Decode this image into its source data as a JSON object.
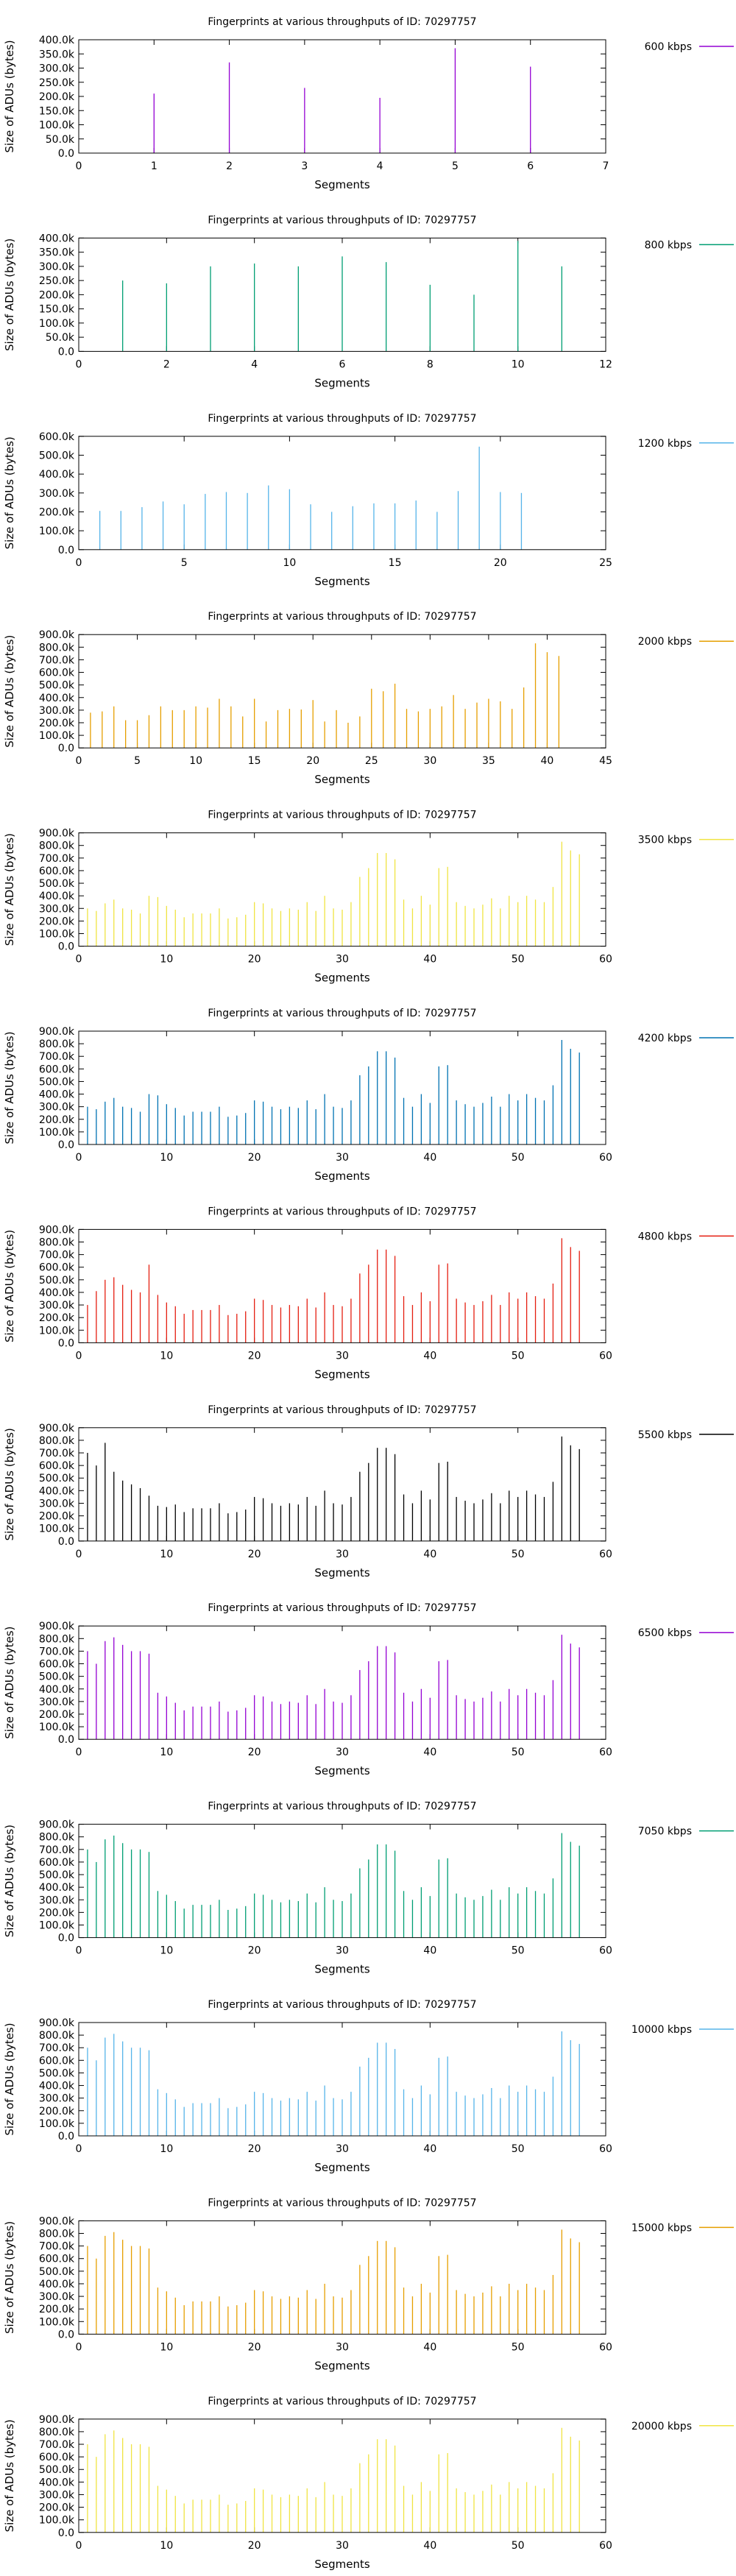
{
  "chart_data": [
    {
      "type": "bar",
      "title": "Fingerprints at various throughputs of ID: 70297757",
      "xlabel": "Segments",
      "ylabel": "Size of ADUs (bytes)",
      "legend": "600 kbps",
      "color": "#9400d3",
      "xlim": [
        0,
        7
      ],
      "xticks": [
        0,
        1,
        2,
        3,
        4,
        5,
        6,
        7
      ],
      "ylim": [
        0,
        400000
      ],
      "yticks": [
        "0.0",
        "50.0k",
        "100.0k",
        "150.0k",
        "200.0k",
        "250.0k",
        "300.0k",
        "350.0k",
        "400.0k"
      ],
      "values": [
        210000,
        320000,
        230000,
        195000,
        370000,
        305000
      ]
    },
    {
      "type": "bar",
      "title": "Fingerprints at various throughputs of ID: 70297757",
      "xlabel": "Segments",
      "ylabel": "Size of ADUs (bytes)",
      "legend": "800 kbps",
      "color": "#009e73",
      "xlim": [
        0,
        12
      ],
      "xticks": [
        0,
        2,
        4,
        6,
        8,
        10,
        12
      ],
      "ylim": [
        0,
        400000
      ],
      "yticks": [
        "0.0",
        "50.0k",
        "100.0k",
        "150.0k",
        "200.0k",
        "250.0k",
        "300.0k",
        "350.0k",
        "400.0k"
      ],
      "values": [
        250000,
        240000,
        300000,
        310000,
        300000,
        335000,
        315000,
        235000,
        200000,
        390000,
        300000
      ]
    },
    {
      "type": "bar",
      "title": "Fingerprints at various throughputs of ID: 70297757",
      "xlabel": "Segments",
      "ylabel": "Size of ADUs (bytes)",
      "legend": "1200 kbps",
      "color": "#56b4e9",
      "xlim": [
        0,
        25
      ],
      "xticks": [
        0,
        5,
        10,
        15,
        20,
        25
      ],
      "ylim": [
        0,
        600000
      ],
      "yticks": [
        "0.0",
        "100.0k",
        "200.0k",
        "300.0k",
        "400.0k",
        "500.0k",
        "600.0k"
      ],
      "values": [
        205000,
        205000,
        225000,
        255000,
        240000,
        295000,
        305000,
        300000,
        340000,
        320000,
        240000,
        200000,
        230000,
        245000,
        245000,
        260000,
        200000,
        310000,
        545000,
        305000,
        300000
      ]
    },
    {
      "type": "bar",
      "title": "Fingerprints at various throughputs of ID: 70297757",
      "xlabel": "Segments",
      "ylabel": "Size of ADUs (bytes)",
      "legend": "2000 kbps",
      "color": "#e69f00",
      "xlim": [
        0,
        45
      ],
      "xticks": [
        0,
        5,
        10,
        15,
        20,
        25,
        30,
        35,
        40,
        45
      ],
      "ylim": [
        0,
        900000
      ],
      "yticks": [
        "0.0",
        "100.0k",
        "200.0k",
        "300.0k",
        "400.0k",
        "500.0k",
        "600.0k",
        "700.0k",
        "800.0k",
        "900.0k"
      ],
      "values": [
        280000,
        290000,
        330000,
        220000,
        220000,
        260000,
        330000,
        300000,
        300000,
        330000,
        320000,
        390000,
        330000,
        250000,
        390000,
        210000,
        300000,
        310000,
        305000,
        380000,
        210000,
        300000,
        200000,
        250000,
        470000,
        450000,
        510000,
        310000,
        290000,
        310000,
        330000,
        420000,
        310000,
        360000,
        390000,
        370000,
        310000,
        480000,
        830000,
        760000,
        730000
      ]
    },
    {
      "type": "bar",
      "title": "Fingerprints at various throughputs of ID: 70297757",
      "xlabel": "Segments",
      "ylabel": "Size of ADUs (bytes)",
      "legend": "3500 kbps",
      "color": "#f0e442",
      "xlim": [
        0,
        60
      ],
      "xticks": [
        0,
        10,
        20,
        30,
        40,
        50,
        60
      ],
      "ylim": [
        0,
        900000
      ],
      "yticks": [
        "0.0",
        "100.0k",
        "200.0k",
        "300.0k",
        "400.0k",
        "500.0k",
        "600.0k",
        "700.0k",
        "800.0k",
        "900.0k"
      ],
      "values": [
        300000,
        280000,
        340000,
        370000,
        300000,
        290000,
        260000,
        400000,
        390000,
        320000,
        290000,
        230000,
        260000,
        260000,
        260000,
        300000,
        220000,
        230000,
        250000,
        350000,
        340000,
        300000,
        280000,
        300000,
        290000,
        350000,
        280000,
        400000,
        300000,
        290000,
        350000,
        550000,
        620000,
        740000,
        740000,
        690000,
        370000,
        300000,
        400000,
        330000,
        620000,
        630000,
        350000,
        320000,
        300000,
        330000,
        380000,
        300000,
        400000,
        350000,
        400000,
        370000,
        350000,
        470000,
        830000,
        760000,
        730000
      ]
    },
    {
      "type": "bar",
      "title": "Fingerprints at various throughputs of ID: 70297757",
      "xlabel": "Segments",
      "ylabel": "Size of ADUs (bytes)",
      "legend": "4200 kbps",
      "color": "#0072b2",
      "xlim": [
        0,
        60
      ],
      "xticks": [
        0,
        10,
        20,
        30,
        40,
        50,
        60
      ],
      "ylim": [
        0,
        900000
      ],
      "yticks": [
        "0.0",
        "100.0k",
        "200.0k",
        "300.0k",
        "400.0k",
        "500.0k",
        "600.0k",
        "700.0k",
        "800.0k",
        "900.0k"
      ],
      "values": [
        300000,
        280000,
        340000,
        370000,
        300000,
        290000,
        260000,
        400000,
        390000,
        320000,
        290000,
        230000,
        260000,
        260000,
        260000,
        300000,
        220000,
        230000,
        250000,
        350000,
        340000,
        300000,
        280000,
        300000,
        290000,
        350000,
        280000,
        400000,
        300000,
        290000,
        350000,
        550000,
        620000,
        740000,
        740000,
        690000,
        370000,
        300000,
        400000,
        330000,
        620000,
        630000,
        350000,
        320000,
        300000,
        330000,
        380000,
        300000,
        400000,
        350000,
        400000,
        370000,
        350000,
        470000,
        830000,
        760000,
        730000
      ]
    },
    {
      "type": "bar",
      "title": "Fingerprints at various throughputs of ID: 70297757",
      "xlabel": "Segments",
      "ylabel": "Size of ADUs (bytes)",
      "legend": "4800 kbps",
      "color": "#e51e10",
      "xlim": [
        0,
        60
      ],
      "xticks": [
        0,
        10,
        20,
        30,
        40,
        50,
        60
      ],
      "ylim": [
        0,
        900000
      ],
      "yticks": [
        "0.0",
        "100.0k",
        "200.0k",
        "300.0k",
        "400.0k",
        "500.0k",
        "600.0k",
        "700.0k",
        "800.0k",
        "900.0k"
      ],
      "values": [
        300000,
        410000,
        500000,
        520000,
        460000,
        420000,
        400000,
        620000,
        380000,
        320000,
        290000,
        230000,
        260000,
        260000,
        260000,
        300000,
        220000,
        230000,
        250000,
        350000,
        340000,
        300000,
        280000,
        300000,
        290000,
        350000,
        280000,
        400000,
        300000,
        290000,
        350000,
        550000,
        620000,
        740000,
        740000,
        690000,
        370000,
        300000,
        400000,
        330000,
        620000,
        630000,
        350000,
        320000,
        300000,
        330000,
        380000,
        300000,
        400000,
        350000,
        400000,
        370000,
        350000,
        470000,
        830000,
        760000,
        730000
      ]
    },
    {
      "type": "bar",
      "title": "Fingerprints at various throughputs of ID: 70297757",
      "xlabel": "Segments",
      "ylabel": "Size of ADUs (bytes)",
      "legend": "5500 kbps",
      "color": "#000000",
      "xlim": [
        0,
        60
      ],
      "xticks": [
        0,
        10,
        20,
        30,
        40,
        50,
        60
      ],
      "ylim": [
        0,
        900000
      ],
      "yticks": [
        "0.0",
        "100.0k",
        "200.0k",
        "300.0k",
        "400.0k",
        "500.0k",
        "600.0k",
        "700.0k",
        "800.0k",
        "900.0k"
      ],
      "values": [
        700000,
        600000,
        780000,
        550000,
        480000,
        450000,
        420000,
        360000,
        280000,
        270000,
        290000,
        230000,
        260000,
        260000,
        260000,
        300000,
        220000,
        230000,
        250000,
        350000,
        340000,
        300000,
        280000,
        300000,
        290000,
        350000,
        280000,
        400000,
        300000,
        290000,
        350000,
        550000,
        620000,
        740000,
        740000,
        690000,
        370000,
        300000,
        400000,
        330000,
        620000,
        630000,
        350000,
        320000,
        300000,
        330000,
        380000,
        300000,
        400000,
        350000,
        400000,
        370000,
        350000,
        470000,
        830000,
        760000,
        730000
      ]
    },
    {
      "type": "bar",
      "title": "Fingerprints at various throughputs of ID: 70297757",
      "xlabel": "Segments",
      "ylabel": "Size of ADUs (bytes)",
      "legend": "6500 kbps",
      "color": "#9400d3",
      "xlim": [
        0,
        60
      ],
      "xticks": [
        0,
        10,
        20,
        30,
        40,
        50,
        60
      ],
      "ylim": [
        0,
        900000
      ],
      "yticks": [
        "0.0",
        "100.0k",
        "200.0k",
        "300.0k",
        "400.0k",
        "500.0k",
        "600.0k",
        "700.0k",
        "800.0k",
        "900.0k"
      ],
      "values": [
        700000,
        600000,
        780000,
        810000,
        750000,
        700000,
        700000,
        680000,
        370000,
        340000,
        290000,
        230000,
        260000,
        260000,
        260000,
        300000,
        220000,
        230000,
        250000,
        350000,
        340000,
        300000,
        280000,
        300000,
        290000,
        350000,
        280000,
        400000,
        300000,
        290000,
        350000,
        550000,
        620000,
        740000,
        740000,
        690000,
        370000,
        300000,
        400000,
        330000,
        620000,
        630000,
        350000,
        320000,
        300000,
        330000,
        380000,
        300000,
        400000,
        350000,
        400000,
        370000,
        350000,
        470000,
        830000,
        760000,
        730000
      ]
    },
    {
      "type": "bar",
      "title": "Fingerprints at various throughputs of ID: 70297757",
      "xlabel": "Segments",
      "ylabel": "Size of ADUs (bytes)",
      "legend": "7050 kbps",
      "color": "#009e73",
      "xlim": [
        0,
        60
      ],
      "xticks": [
        0,
        10,
        20,
        30,
        40,
        50,
        60
      ],
      "ylim": [
        0,
        900000
      ],
      "yticks": [
        "0.0",
        "100.0k",
        "200.0k",
        "300.0k",
        "400.0k",
        "500.0k",
        "600.0k",
        "700.0k",
        "800.0k",
        "900.0k"
      ],
      "values": [
        700000,
        600000,
        780000,
        810000,
        750000,
        700000,
        700000,
        680000,
        370000,
        340000,
        290000,
        230000,
        260000,
        260000,
        260000,
        300000,
        220000,
        230000,
        250000,
        350000,
        340000,
        300000,
        280000,
        300000,
        290000,
        350000,
        280000,
        400000,
        300000,
        290000,
        350000,
        550000,
        620000,
        740000,
        740000,
        690000,
        370000,
        300000,
        400000,
        330000,
        620000,
        630000,
        350000,
        320000,
        300000,
        330000,
        380000,
        300000,
        400000,
        350000,
        400000,
        370000,
        350000,
        470000,
        830000,
        760000,
        730000
      ]
    },
    {
      "type": "bar",
      "title": "Fingerprints at various throughputs of ID: 70297757",
      "xlabel": "Segments",
      "ylabel": "Size of ADUs (bytes)",
      "legend": "10000 kbps",
      "color": "#56b4e9",
      "xlim": [
        0,
        60
      ],
      "xticks": [
        0,
        10,
        20,
        30,
        40,
        50,
        60
      ],
      "ylim": [
        0,
        900000
      ],
      "yticks": [
        "0.0",
        "100.0k",
        "200.0k",
        "300.0k",
        "400.0k",
        "500.0k",
        "600.0k",
        "700.0k",
        "800.0k",
        "900.0k"
      ],
      "values": [
        700000,
        600000,
        780000,
        810000,
        750000,
        700000,
        700000,
        680000,
        370000,
        340000,
        290000,
        230000,
        260000,
        260000,
        260000,
        300000,
        220000,
        230000,
        250000,
        350000,
        340000,
        300000,
        280000,
        300000,
        290000,
        350000,
        280000,
        400000,
        300000,
        290000,
        350000,
        550000,
        620000,
        740000,
        740000,
        690000,
        370000,
        300000,
        400000,
        330000,
        620000,
        630000,
        350000,
        320000,
        300000,
        330000,
        380000,
        300000,
        400000,
        350000,
        400000,
        370000,
        350000,
        470000,
        830000,
        760000,
        730000
      ]
    },
    {
      "type": "bar",
      "title": "Fingerprints at various throughputs of ID: 70297757",
      "xlabel": "Segments",
      "ylabel": "Size of ADUs (bytes)",
      "legend": "15000 kbps",
      "color": "#e69f00",
      "xlim": [
        0,
        60
      ],
      "xticks": [
        0,
        10,
        20,
        30,
        40,
        50,
        60
      ],
      "ylim": [
        0,
        900000
      ],
      "yticks": [
        "0.0",
        "100.0k",
        "200.0k",
        "300.0k",
        "400.0k",
        "500.0k",
        "600.0k",
        "700.0k",
        "800.0k",
        "900.0k"
      ],
      "values": [
        700000,
        600000,
        780000,
        810000,
        750000,
        700000,
        700000,
        680000,
        370000,
        340000,
        290000,
        230000,
        260000,
        260000,
        260000,
        300000,
        220000,
        230000,
        250000,
        350000,
        340000,
        300000,
        280000,
        300000,
        290000,
        350000,
        280000,
        400000,
        300000,
        290000,
        350000,
        550000,
        620000,
        740000,
        740000,
        690000,
        370000,
        300000,
        400000,
        330000,
        620000,
        630000,
        350000,
        320000,
        300000,
        330000,
        380000,
        300000,
        400000,
        350000,
        400000,
        370000,
        350000,
        470000,
        830000,
        760000,
        730000
      ]
    },
    {
      "type": "bar",
      "title": "Fingerprints at various throughputs of ID: 70297757",
      "xlabel": "Segments",
      "ylabel": "Size of ADUs (bytes)",
      "legend": "20000 kbps",
      "color": "#f0e442",
      "xlim": [
        0,
        60
      ],
      "xticks": [
        0,
        10,
        20,
        30,
        40,
        50,
        60
      ],
      "ylim": [
        0,
        900000
      ],
      "yticks": [
        "0.0",
        "100.0k",
        "200.0k",
        "300.0k",
        "400.0k",
        "500.0k",
        "600.0k",
        "700.0k",
        "800.0k",
        "900.0k"
      ],
      "values": [
        700000,
        600000,
        780000,
        810000,
        750000,
        700000,
        700000,
        680000,
        370000,
        340000,
        290000,
        230000,
        260000,
        260000,
        260000,
        300000,
        220000,
        230000,
        250000,
        350000,
        340000,
        300000,
        280000,
        300000,
        290000,
        350000,
        280000,
        400000,
        300000,
        290000,
        350000,
        550000,
        620000,
        740000,
        740000,
        690000,
        370000,
        300000,
        400000,
        330000,
        620000,
        630000,
        350000,
        320000,
        300000,
        330000,
        380000,
        300000,
        400000,
        350000,
        400000,
        370000,
        350000,
        470000,
        830000,
        760000,
        730000
      ]
    }
  ]
}
